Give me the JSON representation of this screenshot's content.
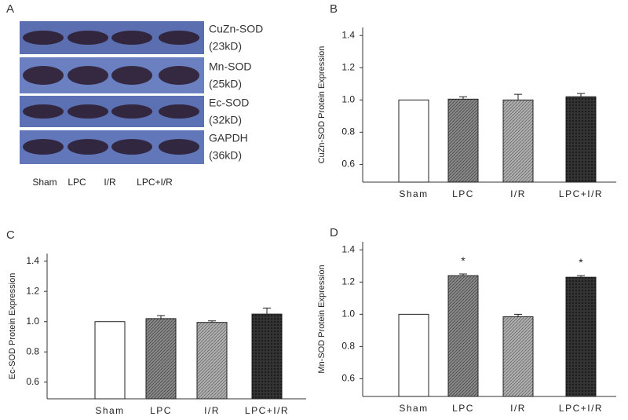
{
  "blot": {
    "label": "A",
    "rows": [
      {
        "name": "CuZn-SOD",
        "size": "(23kD)"
      },
      {
        "name": "Mn-SOD",
        "size": "(25kD)"
      },
      {
        "name": "Ec-SOD",
        "size": "(32kD)"
      },
      {
        "name": "GAPDH",
        "size": "(36kD)"
      }
    ],
    "lanes": [
      "Sham",
      "LPC",
      "I/R",
      "LPC+I/R"
    ]
  },
  "chart_data": [
    {
      "type": "bar",
      "label": "B",
      "y_label": "CuZn-SOD Protein Expression",
      "categories": [
        "Sham",
        "LPC",
        "I/R",
        "LPC+I/R"
      ],
      "values": [
        1.0,
        1.005,
        1.0,
        1.02
      ],
      "errors": [
        null,
        0.015,
        0.035,
        0.02
      ],
      "significance": [
        null,
        null,
        null,
        null
      ],
      "colors": [
        "#ffffff",
        "#8a8a8a",
        "#b0b0b0",
        "#333333"
      ],
      "ylim": [
        0.49,
        1.45
      ],
      "yticks": [
        0.6,
        0.8,
        {
          "value": 1,
          "label": "1.0"
        },
        1.2,
        1.4
      ]
    },
    {
      "type": "bar",
      "label": "C",
      "y_label": "Ec-SOD Protein Expression",
      "categories": [
        "Sham",
        "LPC",
        "I/R",
        "LPC+I/R"
      ],
      "values": [
        1.0,
        1.02,
        0.995,
        1.05
      ],
      "errors": [
        null,
        0.02,
        0.01,
        0.04
      ],
      "significance": [
        null,
        null,
        null,
        null
      ],
      "colors": [
        "#ffffff",
        "#8a8a8a",
        "#b0b0b0",
        "#333333"
      ],
      "ylim": [
        0.49,
        1.45
      ],
      "yticks": [
        0.6,
        0.8,
        {
          "value": 1,
          "label": "1.0"
        },
        1.2,
        1.4
      ]
    },
    {
      "type": "bar",
      "label": "D",
      "y_label": "Mn-SOD Protein Expression",
      "categories": [
        "Sham",
        "LPC",
        "I/R",
        "LPC+I/R"
      ],
      "values": [
        1.0,
        1.24,
        0.985,
        1.23
      ],
      "errors": [
        null,
        0.01,
        0.015,
        0.01
      ],
      "significance": [
        null,
        "*",
        null,
        "*"
      ],
      "colors": [
        "#ffffff",
        "#8a8a8a",
        "#b0b0b0",
        "#333333"
      ],
      "ylim": [
        0.49,
        1.45
      ],
      "yticks": [
        0.6,
        0.8,
        {
          "value": 1,
          "label": "1.0"
        },
        1.2,
        1.4
      ]
    }
  ]
}
